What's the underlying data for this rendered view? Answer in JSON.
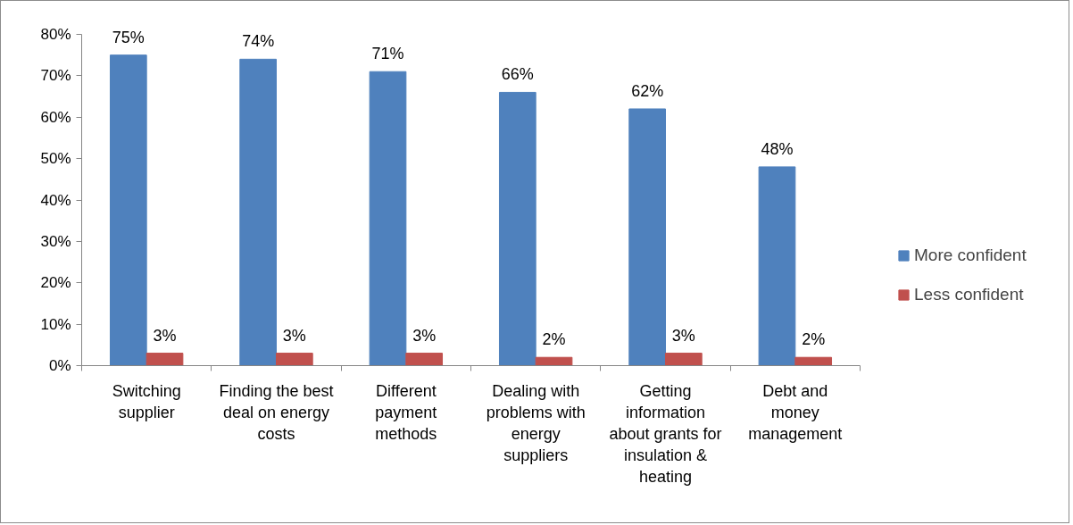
{
  "chart_data": {
    "type": "bar",
    "categories": [
      "Switching\nsupplier",
      "Finding the best\ndeal on energy\ncosts",
      "Different\npayment\nmethods",
      "Dealing with\nproblems with\nenergy\nsuppliers",
      "Getting\ninformation\nabout grants for\ninsulation &\nheating",
      "Debt and\nmoney\nmanagement"
    ],
    "series": [
      {
        "name": "More confident",
        "color": "#4f81bd",
        "values": [
          75,
          74,
          71,
          66,
          62,
          48
        ],
        "value_labels": [
          "75%",
          "74%",
          "71%",
          "66%",
          "62%",
          "48%"
        ]
      },
      {
        "name": "Less confident",
        "color": "#c0504d",
        "values": [
          3,
          3,
          3,
          2,
          3,
          2
        ],
        "value_labels": [
          "3%",
          "3%",
          "3%",
          "2%",
          "3%",
          "2%"
        ]
      }
    ],
    "ylim": [
      0,
      80
    ],
    "yticks": [
      {
        "value": 0,
        "label": "0%"
      },
      {
        "value": 10,
        "label": "10%"
      },
      {
        "value": 20,
        "label": "20%"
      },
      {
        "value": 30,
        "label": "30%"
      },
      {
        "value": 40,
        "label": "40%"
      },
      {
        "value": 50,
        "label": "50%"
      },
      {
        "value": 60,
        "label": "60%"
      },
      {
        "value": 70,
        "label": "70%"
      },
      {
        "value": 80,
        "label": "80%"
      }
    ],
    "grid": false,
    "legend": "right"
  }
}
